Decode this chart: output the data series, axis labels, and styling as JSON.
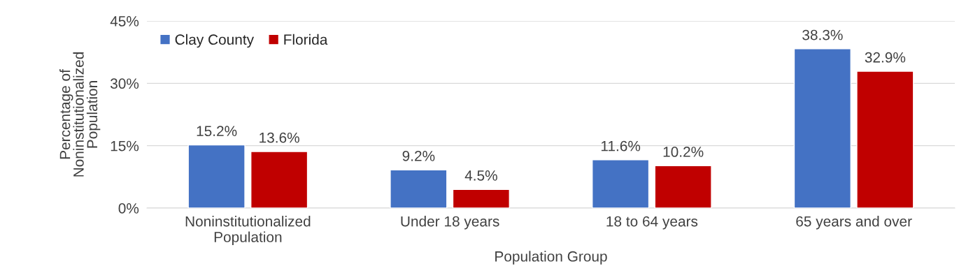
{
  "chart_data": {
    "type": "bar",
    "xlabel": "Population Group",
    "ylabel": "Percentage of\nNoninstitutionalized\nPopulation",
    "categories": [
      "Noninstitutionalized\nPopulation",
      "Under 18 years",
      "18 to 64 years",
      "65 years and over"
    ],
    "series": [
      {
        "name": "Clay County",
        "color": "#4472c4",
        "values": [
          15.2,
          9.2,
          11.6,
          38.3
        ],
        "value_labels": [
          "15.2%",
          "9.2%",
          "11.6%",
          "38.3%"
        ]
      },
      {
        "name": "Florida",
        "color": "#c00000",
        "values": [
          13.6,
          4.5,
          10.2,
          32.9
        ],
        "value_labels": [
          "13.6%",
          "4.5%",
          "10.2%",
          "32.9%"
        ]
      }
    ],
    "ylim": [
      0,
      45
    ],
    "yticks": [
      {
        "value": 0,
        "label": "0%"
      },
      {
        "value": 15,
        "label": "15%"
      },
      {
        "value": 30,
        "label": "30%"
      },
      {
        "value": 45,
        "label": "45%"
      }
    ],
    "grid": "y",
    "legend": "top left"
  }
}
